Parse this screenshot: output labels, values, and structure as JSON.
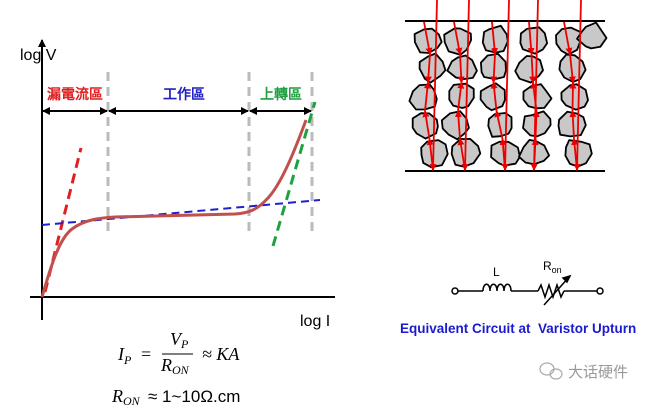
{
  "graph": {
    "y_axis_label": "log V",
    "x_axis_label": "log I",
    "regions": [
      {
        "label": "漏電流區",
        "color": "#e02020"
      },
      {
        "label": "工作區",
        "color": "#2020c0"
      },
      {
        "label": "上轉區",
        "color": "#20a040"
      }
    ],
    "curve_color": "#c0504d",
    "leak_line_color": "#e02020",
    "work_line_color": "#2020d0",
    "upturn_line_color": "#20a040"
  },
  "formula": {
    "line1_lhs": "I",
    "line1_lhs_sub": "P",
    "line1_num": "V",
    "line1_num_sub": "P",
    "line1_den": "R",
    "line1_den_sub": "ON",
    "line1_rhs": "≈ KA",
    "line2_lhs": "R",
    "line2_lhs_sub": "ON",
    "line2_rhs": "≈ 1~10Ω.cm"
  },
  "circuit": {
    "inductor_label": "L",
    "resistor_label": "R",
    "resistor_label_sub": "on",
    "caption": "Equivalent Circuit at  Varistor Upturn",
    "caption_color": "#1a1ad0"
  },
  "watermark": "大话硬件"
}
